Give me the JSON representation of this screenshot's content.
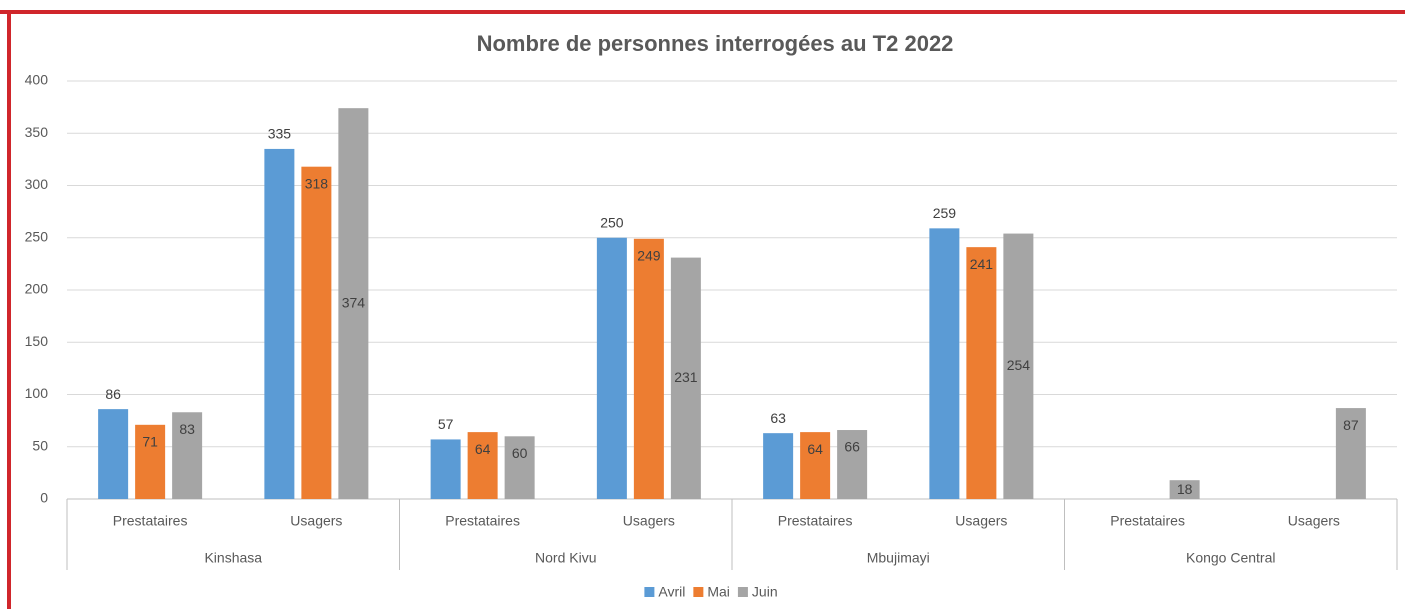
{
  "chart_data": {
    "type": "bar",
    "title": "Nombre de personnes interrogées au T2 2022",
    "categories": [
      "Prestataires",
      "Usagers",
      "Prestataires",
      "Usagers",
      "Prestataires",
      "Usagers",
      "Prestataires",
      "Usagers"
    ],
    "groups": [
      "Kinshasa",
      "Nord Kivu",
      "Mbujimayi",
      "Kongo Central"
    ],
    "series": [
      {
        "name": "Avril",
        "color": "#5b9bd5",
        "values": [
          86,
          335,
          57,
          250,
          63,
          259,
          null,
          null
        ]
      },
      {
        "name": "Mai",
        "color": "#ed7d31",
        "values": [
          71,
          318,
          64,
          249,
          64,
          241,
          null,
          null
        ]
      },
      {
        "name": "Juin",
        "color": "#a5a5a5",
        "values": [
          83,
          374,
          60,
          231,
          66,
          254,
          18,
          87
        ]
      }
    ],
    "ylim": [
      0,
      400
    ],
    "yticks": [
      0,
      50,
      100,
      150,
      200,
      250,
      300,
      350,
      400
    ],
    "grid": true,
    "legend": "bottom"
  }
}
